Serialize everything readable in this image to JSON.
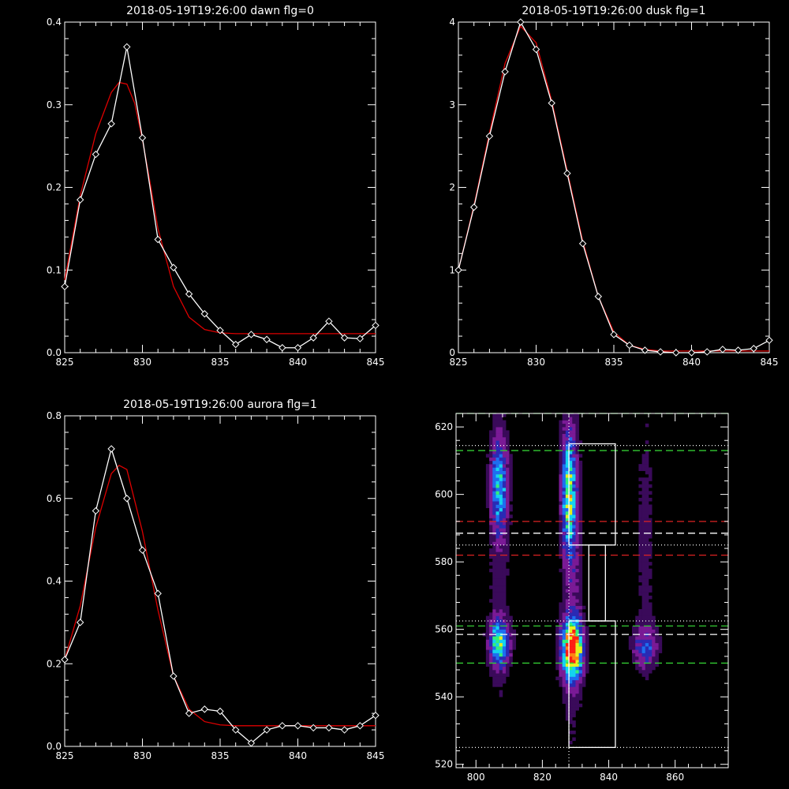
{
  "colors": {
    "background": "#000000",
    "axes": "#ffffff",
    "data_line": "#ffffff",
    "fit_line": "#dd0000",
    "green_dash": "#33cc33",
    "red_dash": "#dd2222",
    "white_dash": "#ffffff"
  },
  "chart_data": [
    {
      "type": "line",
      "title": "2018-05-19T19:26:00 dawn flg=0",
      "xlim": [
        825,
        845
      ],
      "ylim": [
        0,
        0.4
      ],
      "xticks": [
        825,
        830,
        835,
        840,
        845
      ],
      "xtick_labels": [
        "825",
        "830",
        "835",
        "840",
        "845"
      ],
      "yticks": [
        0,
        0.1,
        0.2,
        0.3,
        0.4
      ],
      "ytick_labels": [
        "0.0",
        "0.1",
        "0.2",
        "0.3",
        "0.4"
      ],
      "grid": false,
      "series": [
        {
          "role": "data",
          "marker": "diamond",
          "x": [
            825,
            826,
            827,
            828,
            829,
            830,
            831,
            832,
            833,
            834,
            835,
            836,
            837,
            838,
            839,
            840,
            841,
            842,
            843,
            844,
            845
          ],
          "y": [
            0.08,
            0.185,
            0.24,
            0.277,
            0.37,
            0.26,
            0.137,
            0.103,
            0.071,
            0.047,
            0.027,
            0.01,
            0.022,
            0.016,
            0.006,
            0.006,
            0.018,
            0.038,
            0.018,
            0.017,
            0.033
          ]
        },
        {
          "role": "fit",
          "x": [
            825,
            826,
            827,
            828,
            828.5,
            829,
            829.5,
            830,
            830.5,
            831,
            832,
            833,
            834,
            835,
            836,
            838,
            845
          ],
          "y": [
            0.088,
            0.19,
            0.265,
            0.315,
            0.327,
            0.325,
            0.302,
            0.258,
            0.205,
            0.15,
            0.08,
            0.043,
            0.028,
            0.024,
            0.023,
            0.023,
            0.023
          ]
        }
      ]
    },
    {
      "type": "line",
      "title": "2018-05-19T19:26:00 dusk flg=1",
      "xlim": [
        825,
        845
      ],
      "ylim": [
        0,
        4
      ],
      "xticks": [
        825,
        830,
        835,
        840,
        845
      ],
      "xtick_labels": [
        "825",
        "830",
        "835",
        "840",
        "845"
      ],
      "yticks": [
        0,
        1,
        2,
        3,
        4
      ],
      "ytick_labels": [
        "0",
        "1",
        "2",
        "3",
        "4"
      ],
      "grid": false,
      "series": [
        {
          "role": "data",
          "marker": "diamond",
          "x": [
            825,
            826,
            827,
            828,
            829,
            830,
            831,
            832,
            833,
            834,
            835,
            836,
            837,
            838,
            839,
            840,
            841,
            842,
            843,
            844,
            845
          ],
          "y": [
            1.0,
            1.76,
            2.62,
            3.4,
            4.0,
            3.67,
            3.02,
            2.17,
            1.32,
            0.68,
            0.22,
            0.09,
            0.03,
            0.01,
            0.0,
            0.0,
            0.01,
            0.04,
            0.03,
            0.05,
            0.15
          ]
        },
        {
          "role": "fit",
          "x": [
            825,
            826,
            827,
            828,
            829,
            830,
            831,
            832,
            833,
            834,
            835,
            836,
            837,
            838,
            839,
            840,
            841,
            842,
            843,
            844,
            845
          ],
          "y": [
            1.0,
            1.78,
            2.66,
            3.5,
            3.95,
            3.75,
            3.05,
            2.2,
            1.35,
            0.68,
            0.25,
            0.09,
            0.04,
            0.02,
            0.02,
            0.02,
            0.02,
            0.02,
            0.02,
            0.02,
            0.02
          ]
        }
      ]
    },
    {
      "type": "line",
      "title": "2018-05-19T19:26:00 aurora flg=1",
      "xlim": [
        825,
        845
      ],
      "ylim": [
        0,
        0.8
      ],
      "xticks": [
        825,
        830,
        835,
        840,
        845
      ],
      "xtick_labels": [
        "825",
        "830",
        "835",
        "840",
        "845"
      ],
      "yticks": [
        0,
        0.2,
        0.4,
        0.6,
        0.8
      ],
      "ytick_labels": [
        "0.0",
        "0.2",
        "0.4",
        "0.6",
        "0.8"
      ],
      "grid": false,
      "series": [
        {
          "role": "data",
          "marker": "diamond",
          "x": [
            825,
            826,
            827,
            828,
            829,
            830,
            831,
            832,
            833,
            834,
            835,
            836,
            837,
            838,
            839,
            840,
            841,
            842,
            843,
            844,
            845
          ],
          "y": [
            0.21,
            0.3,
            0.57,
            0.72,
            0.6,
            0.475,
            0.37,
            0.17,
            0.08,
            0.09,
            0.085,
            0.04,
            0.008,
            0.04,
            0.05,
            0.05,
            0.045,
            0.045,
            0.04,
            0.05,
            0.075
          ]
        },
        {
          "role": "fit",
          "x": [
            825,
            826,
            827,
            828,
            828.5,
            829,
            830,
            831,
            832,
            833,
            834,
            835,
            836,
            837,
            838,
            845
          ],
          "y": [
            0.21,
            0.34,
            0.53,
            0.66,
            0.68,
            0.67,
            0.52,
            0.33,
            0.17,
            0.09,
            0.06,
            0.052,
            0.05,
            0.05,
            0.05,
            0.05
          ]
        }
      ]
    },
    {
      "type": "heatmap",
      "xlim": [
        794,
        876
      ],
      "ylim": [
        519,
        624
      ],
      "xticks": [
        800,
        820,
        840,
        860
      ],
      "xtick_labels": [
        "800",
        "820",
        "840",
        "860"
      ],
      "yticks": [
        520,
        540,
        560,
        580,
        600,
        620
      ],
      "ytick_labels": [
        "520",
        "540",
        "560",
        "580",
        "600",
        "620"
      ],
      "grid": false,
      "colormap": [
        "#000000",
        "#3a0a5a",
        "#7a1a96",
        "#2a2ab4",
        "#1e6ef0",
        "#14d2f0",
        "#32f07a",
        "#e6f01e",
        "#ff8214",
        "#ff1e14"
      ],
      "blobs": [
        {
          "x": 807,
          "y": 603,
          "sx": 1.8,
          "sy": 10,
          "peak": 0.5
        },
        {
          "x": 828,
          "y": 601,
          "sx": 1.5,
          "sy": 13,
          "peak": 0.6
        },
        {
          "x": 807,
          "y": 556,
          "sx": 2.2,
          "sy": 4.5,
          "peak": 0.6
        },
        {
          "x": 829,
          "y": 554,
          "sx": 2.2,
          "sy": 6,
          "peak": 1.0
        },
        {
          "x": 851,
          "y": 555,
          "sx": 2.6,
          "sy": 4,
          "peak": 0.33
        },
        {
          "x": 807,
          "y": 575,
          "sx": 2.0,
          "sy": 30,
          "peak": 0.12
        },
        {
          "x": 829,
          "y": 575,
          "sx": 2.2,
          "sy": 35,
          "peak": 0.16
        },
        {
          "x": 851,
          "y": 585,
          "sx": 2.4,
          "sy": 35,
          "peak": 0.1
        }
      ],
      "vertical_lines": [
        {
          "x": 828,
          "style": "dotted",
          "color": "#ffffff"
        }
      ],
      "horizontal_lines": [
        {
          "y": 624,
          "style": "dashed",
          "color": "#33cc33"
        },
        {
          "y": 614.5,
          "style": "dotted",
          "color": "#ffffff"
        },
        {
          "y": 613,
          "style": "dashed",
          "color": "#33cc33"
        },
        {
          "y": 592,
          "style": "dashed",
          "color": "#dd2222"
        },
        {
          "y": 588.5,
          "style": "dashed",
          "color": "#ffffff"
        },
        {
          "y": 585,
          "style": "dotted",
          "color": "#ffffff"
        },
        {
          "y": 582,
          "style": "dashed",
          "color": "#dd2222"
        },
        {
          "y": 562.5,
          "style": "dotted",
          "color": "#ffffff"
        },
        {
          "y": 561,
          "style": "dashed",
          "color": "#33cc33"
        },
        {
          "y": 558.5,
          "style": "dashed",
          "color": "#ffffff"
        },
        {
          "y": 550,
          "style": "dashed",
          "color": "#33cc33"
        },
        {
          "y": 525,
          "style": "dotted",
          "color": "#ffffff"
        }
      ],
      "boxes": [
        {
          "x0": 828,
          "x1": 842,
          "y0": 585,
          "y1": 615
        },
        {
          "x0": 834,
          "x1": 839,
          "y0": 562.5,
          "y1": 585
        },
        {
          "x0": 828,
          "x1": 842,
          "y0": 525,
          "y1": 562.5
        }
      ]
    }
  ]
}
